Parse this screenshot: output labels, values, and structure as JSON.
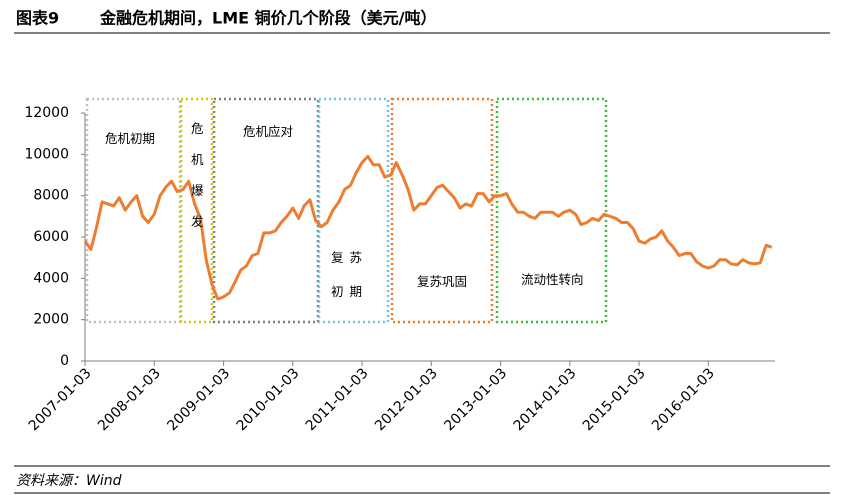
{
  "chart_data": {
    "type": "line",
    "figure_label": "图表9",
    "title": "金融危机期间，LME 铜价几个阶段（美元/吨）",
    "source": "资料来源：Wind",
    "annotations": [
      "危机初期",
      "危机爆发",
      "危机应对",
      "复苏初期",
      "复苏巩固",
      "流动性转向"
    ],
    "x": [
      "2007-01-03",
      "2007-02-03",
      "2007-03-03",
      "2007-04-03",
      "2007-05-03",
      "2007-06-03",
      "2007-07-03",
      "2007-08-03",
      "2007-09-03",
      "2007-10-03",
      "2007-11-03",
      "2007-12-03",
      "2008-01-03",
      "2008-02-03",
      "2008-03-03",
      "2008-04-03",
      "2008-05-03",
      "2008-06-03",
      "2008-07-03",
      "2008-08-03",
      "2008-09-03",
      "2008-10-03",
      "2008-11-03",
      "2008-12-03",
      "2009-01-03",
      "2009-02-03",
      "2009-03-03",
      "2009-04-03",
      "2009-05-03",
      "2009-06-03",
      "2009-07-03",
      "2009-08-03",
      "2009-09-03",
      "2009-10-03",
      "2009-11-03",
      "2009-12-03",
      "2010-01-03",
      "2010-02-03",
      "2010-03-03",
      "2010-04-03",
      "2010-05-03",
      "2010-06-03",
      "2010-07-03",
      "2010-08-03",
      "2010-09-03",
      "2010-10-03",
      "2010-11-03",
      "2010-12-03",
      "2011-01-03",
      "2011-02-03",
      "2011-03-03",
      "2011-04-03",
      "2011-05-03",
      "2011-06-03",
      "2011-07-03",
      "2011-08-03",
      "2011-09-03",
      "2011-10-03",
      "2011-11-03",
      "2011-12-03",
      "2012-01-03",
      "2012-02-03",
      "2012-03-03",
      "2012-04-03",
      "2012-05-03",
      "2012-06-03",
      "2012-07-03",
      "2012-08-03",
      "2012-09-03",
      "2012-10-03",
      "2012-11-03",
      "2012-12-03",
      "2013-01-03",
      "2013-02-03",
      "2013-03-03",
      "2013-04-03",
      "2013-05-03",
      "2013-06-03",
      "2013-07-03",
      "2013-08-03",
      "2013-09-03",
      "2013-10-03",
      "2013-11-03",
      "2013-12-03",
      "2014-01-03",
      "2014-02-03",
      "2014-03-03",
      "2014-04-03",
      "2014-05-03",
      "2014-06-03",
      "2014-07-03",
      "2014-08-03",
      "2014-09-03",
      "2014-10-03",
      "2014-11-03",
      "2014-12-03",
      "2015-01-03",
      "2015-02-03",
      "2015-03-03",
      "2015-04-03",
      "2015-05-03",
      "2015-06-03",
      "2015-07-03",
      "2015-08-03",
      "2015-09-03",
      "2015-10-03",
      "2015-11-03",
      "2015-12-03",
      "2016-01-03",
      "2016-02-03",
      "2016-03-03",
      "2016-04-03",
      "2016-05-03",
      "2016-06-03",
      "2016-07-03",
      "2016-08-03",
      "2016-09-03",
      "2016-10-03",
      "2016-11-03",
      "2016-12-03"
    ],
    "series": [
      {
        "name": "LME铜价",
        "color": "#ed7d31",
        "values": [
          5800,
          5400,
          6400,
          7700,
          7600,
          7500,
          7900,
          7300,
          7700,
          8000,
          7000,
          6700,
          7100,
          8000,
          8400,
          8700,
          8200,
          8300,
          8700,
          7600,
          6900,
          4900,
          3700,
          3000,
          3100,
          3300,
          3800,
          4400,
          4600,
          5100,
          5200,
          6200,
          6200,
          6300,
          6700,
          7000,
          7400,
          6900,
          7500,
          7800,
          6800,
          6500,
          6700,
          7300,
          7700,
          8300,
          8500,
          9100,
          9600,
          9900,
          9500,
          9500,
          8900,
          9000,
          9600,
          9000,
          8300,
          7300,
          7600,
          7600,
          8000,
          8400,
          8500,
          8200,
          7900,
          7400,
          7600,
          7500,
          8100,
          8100,
          7700,
          8000,
          8000,
          8100,
          7600,
          7200,
          7200,
          7000,
          6900,
          7200,
          7200,
          7200,
          7000,
          7200,
          7300,
          7100,
          6600,
          6700,
          6900,
          6800,
          7100,
          7000,
          6900,
          6700,
          6700,
          6400,
          5800,
          5700,
          5900,
          6000,
          6300,
          5800,
          5500,
          5100,
          5200,
          5200,
          4800,
          4600,
          4500,
          4600,
          4900,
          4900,
          4700,
          4650,
          4900,
          4750,
          4700,
          4750,
          5600,
          5500
        ]
      }
    ],
    "xlim": [
      "2007-01-03",
      "2016-12-20"
    ],
    "xticks": [
      "2007-01-03",
      "2008-01-03",
      "2009-01-03",
      "2010-01-03",
      "2011-01-03",
      "2012-01-03",
      "2013-01-03",
      "2014-01-03",
      "2015-01-03",
      "2016-01-03"
    ],
    "ylim": [
      0,
      12000
    ],
    "yticks": [
      0,
      2000,
      4000,
      6000,
      8000,
      10000,
      12000
    ],
    "grid": false
  }
}
